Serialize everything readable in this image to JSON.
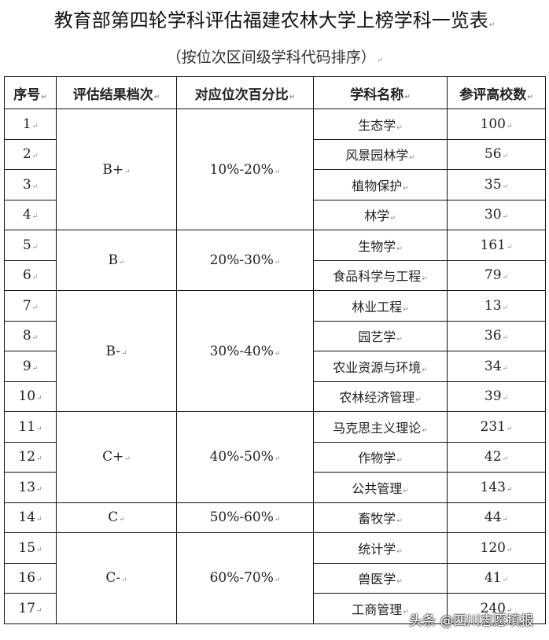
{
  "title": "教育部第四轮学科评估福建农林大学上榜学科一览表",
  "subtitle": "（按位次区间级学科代码排序）",
  "table": {
    "headers": [
      "序号",
      "评估结果档次",
      "对应位次百分比",
      "学科名称",
      "参评高校数"
    ],
    "groups": [
      {
        "grade": "B+",
        "range": "10%-20%",
        "subjects": [
          {
            "no": "1",
            "name": "生态学",
            "count": "100"
          },
          {
            "no": "2",
            "name": "风景园林学",
            "count": "56"
          },
          {
            "no": "3",
            "name": "植物保护",
            "count": "35"
          },
          {
            "no": "4",
            "name": "林学",
            "count": "30"
          }
        ]
      },
      {
        "grade": "B",
        "range": "20%-30%",
        "subjects": [
          {
            "no": "5",
            "name": "生物学",
            "count": "161"
          },
          {
            "no": "6",
            "name": "食品科学与工程",
            "count": "79"
          }
        ]
      },
      {
        "grade": "B-",
        "range": "30%-40%",
        "subjects": [
          {
            "no": "7",
            "name": "林业工程",
            "count": "13"
          },
          {
            "no": "8",
            "name": "园艺学",
            "count": "36"
          },
          {
            "no": "9",
            "name": "农业资源与环境",
            "count": "34"
          },
          {
            "no": "10",
            "name": "农林经济管理",
            "count": "39"
          }
        ]
      },
      {
        "grade": "C+",
        "range": "40%-50%",
        "subjects": [
          {
            "no": "11",
            "name": "马克思主义理论",
            "count": "231"
          },
          {
            "no": "12",
            "name": "作物学",
            "count": "42"
          },
          {
            "no": "13",
            "name": "公共管理",
            "count": "143"
          }
        ]
      },
      {
        "grade": "C",
        "range": "50%-60%",
        "subjects": [
          {
            "no": "14",
            "name": "畜牧学",
            "count": "44"
          }
        ]
      },
      {
        "grade": "C-",
        "range": "60%-70%",
        "subjects": [
          {
            "no": "15",
            "name": "统计学",
            "count": "120"
          },
          {
            "no": "16",
            "name": "兽医学",
            "count": "41"
          },
          {
            "no": "17",
            "name": "工商管理",
            "count": "240"
          }
        ]
      }
    ]
  },
  "watermark": "头条 @四川志愿填报"
}
